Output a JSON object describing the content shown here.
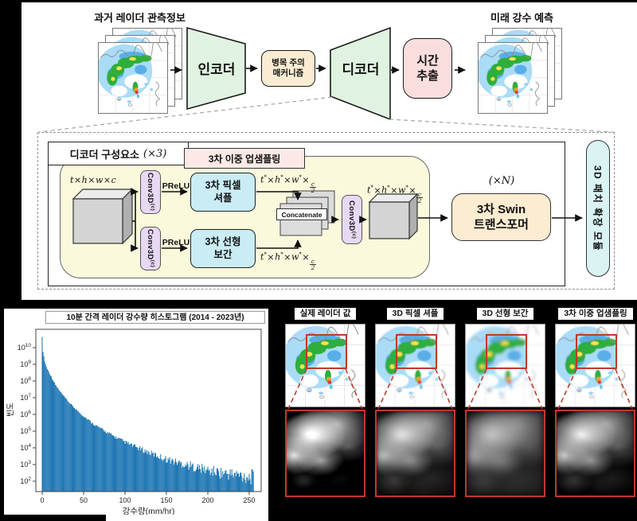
{
  "top_flow": {
    "input_label": "과거 레이더 관측정보",
    "output_label": "미래 강수 예측",
    "encoder_label": "인코더",
    "bottleneck_label": "병목 주의\n매커니즘",
    "decoder_label": "디코더",
    "time_extract_label": "시간\n추출"
  },
  "decoder_detail": {
    "panel_title": "디코더 구성요소",
    "panel_mult": "(×3)",
    "upsampling_title": "3차 이중 업샘플링",
    "conv3d_label": "Conv3D",
    "conv3d_sup": "(c)",
    "prelu_label": "PReLU",
    "pixel_shuffle_label": "3차 픽셀\n셔플",
    "linear_interp_label": "3차 선형\n보간",
    "concatenate_label": "Concatenate",
    "swin_mult": "(×N)",
    "swin_label": "3차 Swin\n트랜스포머",
    "patch_expand_label": "3D 패치 확장 모듈",
    "tensor_in": {
      "text_vars": [
        "t",
        "h",
        "w"
      ],
      "last": "c",
      "starred": false
    },
    "tensor_half": {
      "text_vars": [
        "t",
        "h",
        "w"
      ],
      "frac": [
        "c",
        "2"
      ],
      "starred": true
    }
  },
  "chart_data": {
    "type": "bar",
    "title": "10분 간격 레이더 강수량 히스토그램 (2014 - 2023년)",
    "xlabel": "강수량(mm/hr)",
    "ylabel": "빈도",
    "x_ticks": [
      0,
      50,
      100,
      150,
      200,
      250
    ],
    "xlim": [
      0,
      255
    ],
    "y_scale": "log",
    "y_tick_exponents": [
      2,
      3,
      4,
      5,
      6,
      7,
      8,
      9,
      10
    ],
    "bar_color": "#1f77b4",
    "grid": false,
    "anchors": [
      [
        0,
        40000000000.0
      ],
      [
        1,
        6000000000.0
      ],
      [
        3,
        1500000000.0
      ],
      [
        5,
        700000000.0
      ],
      [
        8,
        350000000.0
      ],
      [
        12,
        140000000.0
      ],
      [
        16,
        60000000.0
      ],
      [
        20,
        30000000.0
      ],
      [
        25,
        14000000.0
      ],
      [
        30,
        7000000.0
      ],
      [
        35,
        3800000.0
      ],
      [
        40,
        2200000.0
      ],
      [
        45,
        1300000.0
      ],
      [
        50,
        800000.0
      ],
      [
        60,
        320000.0
      ],
      [
        70,
        150000.0
      ],
      [
        80,
        75000.0
      ],
      [
        90,
        40000.0
      ],
      [
        100,
        22000.0
      ],
      [
        110,
        13000.0
      ],
      [
        120,
        8000.0
      ],
      [
        130,
        5000.0
      ],
      [
        140,
        3200.0
      ],
      [
        150,
        2100.0
      ],
      [
        160,
        1500.0
      ],
      [
        170,
        1100.0
      ],
      [
        180,
        800
      ],
      [
        190,
        600
      ],
      [
        200,
        450
      ],
      [
        210,
        360
      ],
      [
        220,
        300
      ],
      [
        230,
        260
      ],
      [
        240,
        220
      ],
      [
        250,
        190
      ],
      [
        255,
        170
      ]
    ]
  },
  "comparison": {
    "columns": [
      {
        "label": "실제 레이더 값",
        "quality": "sharp"
      },
      {
        "label": "3D 픽셀 셔플",
        "quality": "blurry-blocky"
      },
      {
        "label": "3D 선형 보간",
        "quality": "very-blurry"
      },
      {
        "label": "3차 이중 업샘플링",
        "quality": "near-sharp"
      }
    ]
  },
  "colors": {
    "bar": "#1f77b4",
    "highlight_red": "#c0392b",
    "encoder_fill": "#dff3e0",
    "bottleneck_fill": "#faecd2",
    "time_fill": "#fadede",
    "yellow_panel_fill": "#fbf9dc",
    "upsample_title_fill": "#fce9e6",
    "conv_fill": "#e7d8f4",
    "cyan_fill": "#c9ecf5",
    "swin_fill": "#fcecd2",
    "patch_expand_fill": "#daf4f4"
  }
}
